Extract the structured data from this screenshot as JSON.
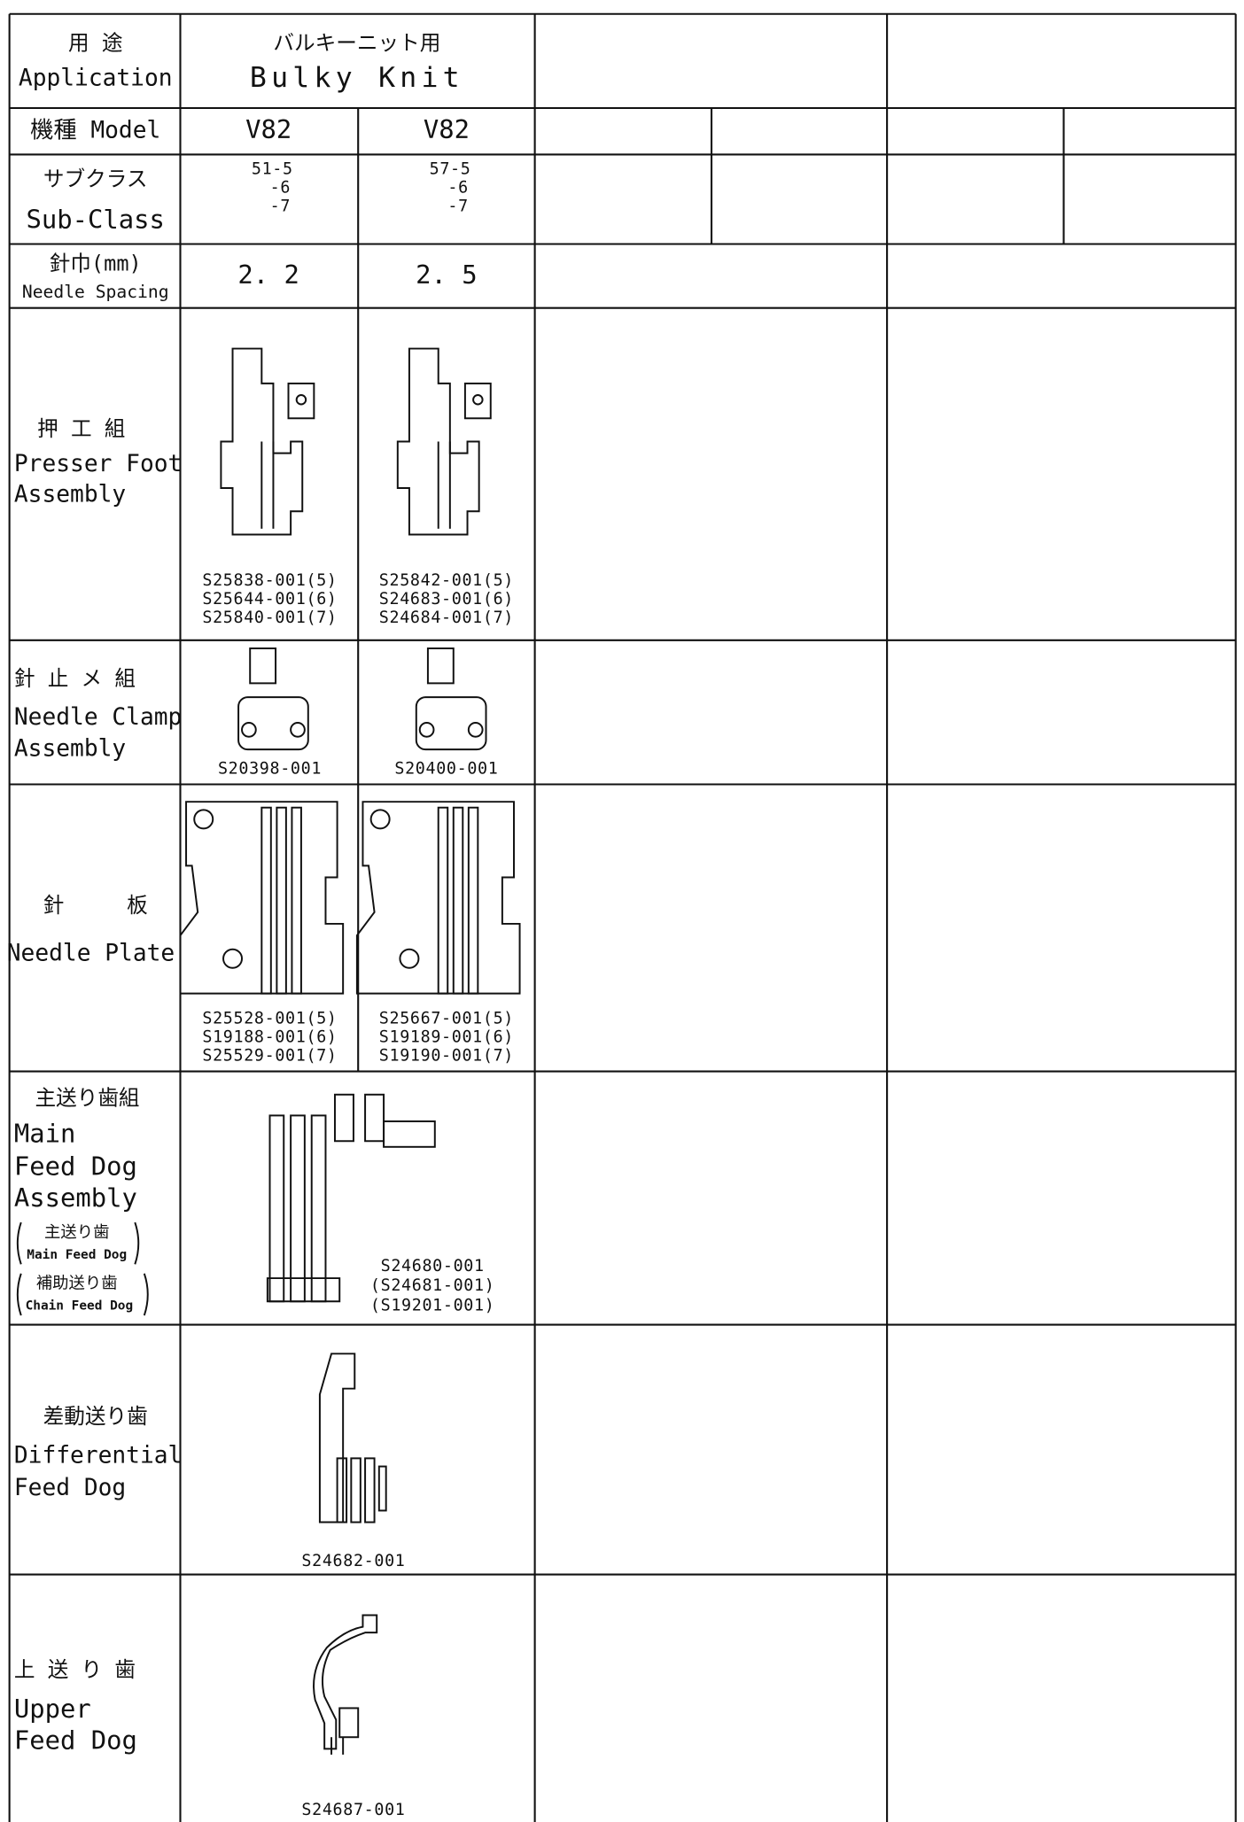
{
  "table": {
    "rows": [
      {
        "label_ja": "用 途",
        "label_en": "Application",
        "value_ja": "バルキーニット用",
        "value_en": "Bulky Knit"
      },
      {
        "label": "機種 Model",
        "values": [
          "V82",
          "V82"
        ]
      },
      {
        "label_ja": "サブクラス",
        "label_en": "Sub-Class",
        "values": [
          [
            "51-5",
            "-6",
            "-7"
          ],
          [
            "57-5",
            "-6",
            "-7"
          ]
        ]
      },
      {
        "label_ja": "針巾(mm)",
        "label_en": "Needle Spacing",
        "values": [
          "2. 2",
          "2. 5"
        ]
      },
      {
        "label_ja": "押 工 組",
        "label_en": [
          "Presser Foot",
          "Assembly"
        ],
        "parts": [
          [
            "S25838-001(5)",
            "S25644-001(6)",
            "S25840-001(7)"
          ],
          [
            "S25842-001(5)",
            "S24683-001(6)",
            "S24684-001(7)"
          ]
        ]
      },
      {
        "label_ja": "針 止 メ 組",
        "label_en": [
          "Needle Clamp",
          "Assembly"
        ],
        "parts": [
          "S20398-001",
          "S20400-001"
        ]
      },
      {
        "label_ja": "針　　　板",
        "label_en": "Needle Plate",
        "parts": [
          [
            "S25528-001(5)",
            "S19188-001(6)",
            "S25529-001(7)"
          ],
          [
            "S25667-001(5)",
            "S19189-001(6)",
            "S19190-001(7)"
          ]
        ]
      },
      {
        "label_ja": "主送り歯組",
        "label_en": [
          "Main",
          "Feed Dog",
          "Assembly"
        ],
        "sub": [
          {
            "ja": "主送り歯",
            "en": "Main Feed Dog"
          },
          {
            "ja": "補助送り歯",
            "en": "Chain Feed Dog"
          }
        ],
        "parts": [
          "S24680-001",
          "(S24681-001)",
          "(S19201-001)"
        ]
      },
      {
        "label_ja": "差動送り歯",
        "label_en": [
          "Differential",
          "Feed Dog"
        ],
        "parts": [
          "S24682-001"
        ]
      },
      {
        "label_ja": "上 送 り 歯",
        "label_en": [
          "Upper",
          "Feed Dog"
        ],
        "parts": [
          "S24687-001"
        ]
      }
    ]
  }
}
